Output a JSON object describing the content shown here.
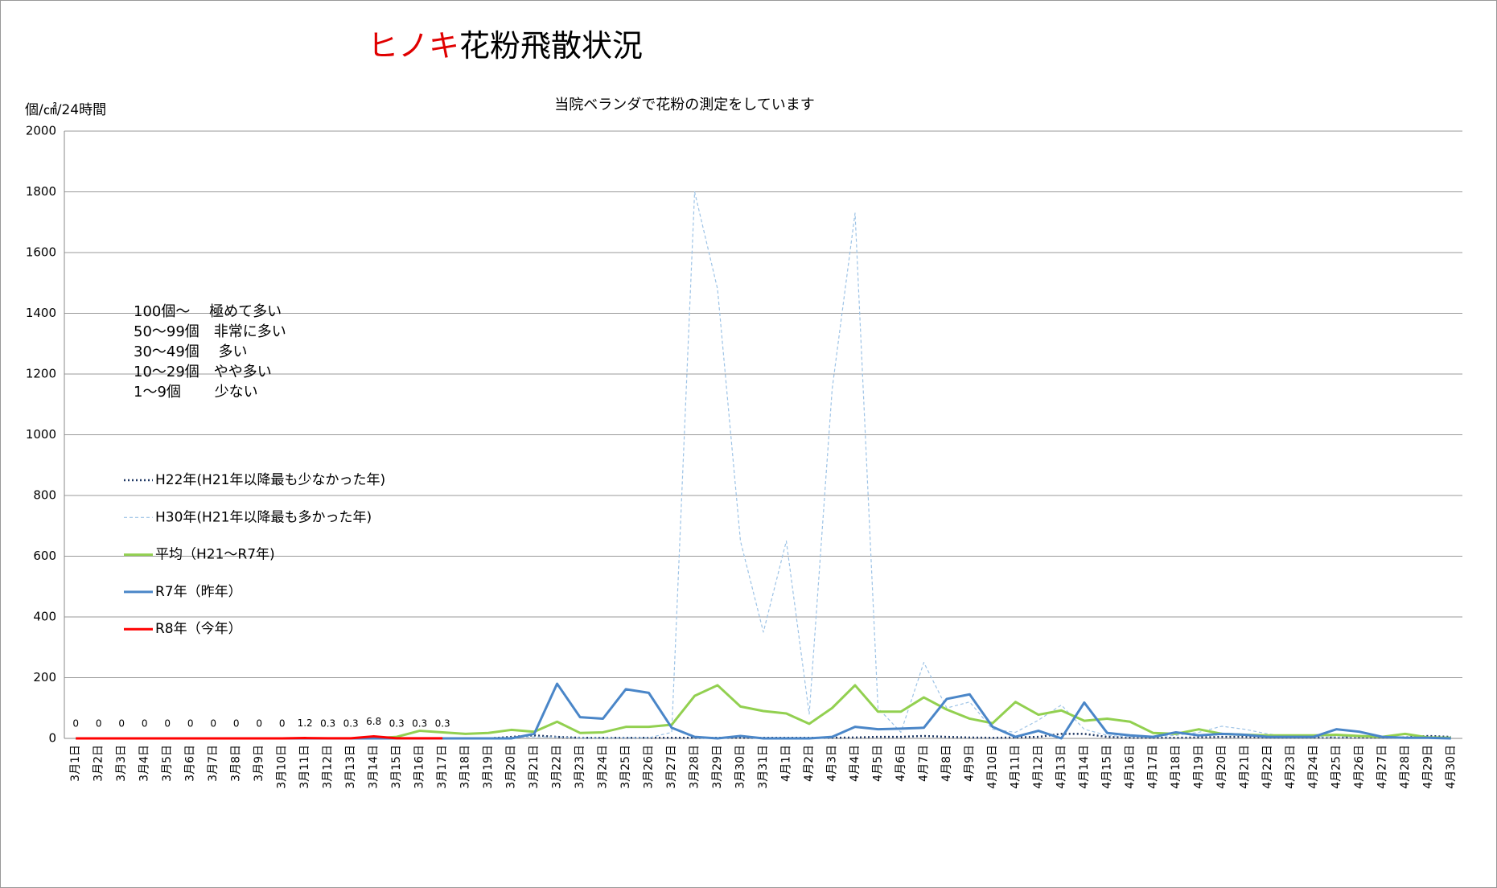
{
  "chart_data": {
    "type": "line",
    "title_parts": [
      "ヒノキ",
      "花粉飛散状況"
    ],
    "subtitle": "当院ベランダで花粉の測定をしています",
    "y_label": "個/㎠/24時間",
    "annotations": [
      "100個～　 極めて多い",
      "50～99個　非常に多い",
      "30～49個　 多い",
      "10～29個　やや多い",
      "1～9個　　 少ない"
    ],
    "categories": [
      "3月1日",
      "3月2日",
      "3月3日",
      "3月4日",
      "3月5日",
      "3月6日",
      "3月7日",
      "3月8日",
      "3月9日",
      "3月10日",
      "3月11日",
      "3月12日",
      "3月13日",
      "3月14日",
      "3月15日",
      "3月16日",
      "3月17日",
      "3月18日",
      "3月19日",
      "3月20日",
      "3月21日",
      "3月22日",
      "3月23日",
      "3月24日",
      "3月25日",
      "3月26日",
      "3月27日",
      "3月28日",
      "3月29日",
      "3月30日",
      "3月31日",
      "4月1日",
      "4月2日",
      "4月3日",
      "4月4日",
      "4月5日",
      "4月6日",
      "4月7日",
      "4月8日",
      "4月9日",
      "4月10日",
      "4月11日",
      "4月12日",
      "4月13日",
      "4月14日",
      "4月15日",
      "4月16日",
      "4月17日",
      "4月18日",
      "4月19日",
      "4月20日",
      "4月21日",
      "4月22日",
      "4月23日",
      "4月24日",
      "4月25日",
      "4月26日",
      "4月27日",
      "4月28日",
      "4月29日",
      "4月30日"
    ],
    "series": [
      {
        "name": "H22年(H21年以降最も少なかった年)",
        "color": "#1f3864",
        "style": "dotted",
        "values": [
          0,
          0,
          0,
          0,
          0,
          0,
          0,
          0,
          0,
          0,
          0,
          0,
          0,
          0,
          0,
          0,
          0,
          0,
          0,
          5,
          10,
          5,
          2,
          2,
          2,
          2,
          2,
          2,
          2,
          2,
          2,
          2,
          2,
          2,
          3,
          5,
          5,
          8,
          5,
          3,
          2,
          3,
          5,
          15,
          15,
          5,
          2,
          2,
          2,
          3,
          5,
          5,
          3,
          3,
          3,
          3,
          3,
          3,
          3,
          8,
          5
        ]
      },
      {
        "name": "H30年(H21年以降最も多かった年)",
        "color": "#9dc3e6",
        "style": "dashed",
        "values": [
          0,
          0,
          0,
          0,
          0,
          0,
          0,
          0,
          0,
          0,
          0,
          0,
          0,
          0,
          0,
          0,
          0,
          0,
          0,
          3,
          5,
          5,
          2,
          2,
          2,
          2,
          20,
          1800,
          1480,
          650,
          350,
          650,
          80,
          1150,
          1730,
          100,
          20,
          250,
          100,
          120,
          30,
          20,
          60,
          110,
          30,
          10,
          5,
          5,
          10,
          20,
          40,
          30,
          15,
          5,
          5,
          5,
          5,
          3,
          2,
          2,
          0
        ]
      },
      {
        "name": "平均（H21～R7年)",
        "color": "#92d050",
        "style": "solid",
        "values": [
          0,
          0,
          0,
          0,
          0,
          0,
          0,
          0,
          0,
          0,
          0,
          0,
          0,
          0,
          5,
          25,
          20,
          15,
          18,
          28,
          22,
          55,
          18,
          20,
          38,
          38,
          45,
          140,
          175,
          105,
          90,
          82,
          48,
          100,
          175,
          88,
          88,
          135,
          95,
          65,
          50,
          120,
          78,
          92,
          58,
          65,
          55,
          18,
          15,
          30,
          15,
          12,
          10,
          10,
          10,
          12,
          8,
          5,
          15,
          3,
          2
        ]
      },
      {
        "name": "R7年（昨年）",
        "color": "#4a86c8",
        "style": "solid",
        "values": [
          0,
          0,
          0,
          0,
          0,
          0,
          0,
          0,
          0,
          0,
          0,
          0,
          0,
          0,
          0,
          0,
          0,
          0,
          0,
          0,
          15,
          180,
          70,
          65,
          162,
          150,
          35,
          5,
          0,
          8,
          0,
          0,
          0,
          5,
          38,
          30,
          32,
          35,
          130,
          145,
          38,
          5,
          25,
          0,
          118,
          18,
          10,
          5,
          20,
          10,
          15,
          12,
          5,
          5,
          5,
          30,
          22,
          5,
          2,
          2,
          0
        ]
      },
      {
        "name": "R8年（今年）",
        "color": "#ff0000",
        "style": "solid",
        "data_labels": true,
        "values": [
          0,
          0,
          0,
          0,
          0,
          0,
          0,
          0,
          0,
          0,
          1.2,
          0.3,
          0.3,
          6.8,
          0.3,
          0.3,
          0.3,
          null,
          null,
          null,
          null,
          null,
          null,
          null,
          null,
          null,
          null,
          null,
          null,
          null,
          null,
          null,
          null,
          null,
          null,
          null,
          null,
          null,
          null,
          null,
          null,
          null,
          null,
          null,
          null,
          null,
          null,
          null,
          null,
          null,
          null,
          null,
          null,
          null,
          null,
          null,
          null,
          null,
          null,
          null,
          null
        ]
      }
    ],
    "ylim": [
      0,
      2000
    ],
    "yticks": [
      0,
      200,
      400,
      600,
      800,
      1000,
      1200,
      1400,
      1600,
      1800,
      2000
    ],
    "grid": true,
    "legend": "left"
  }
}
